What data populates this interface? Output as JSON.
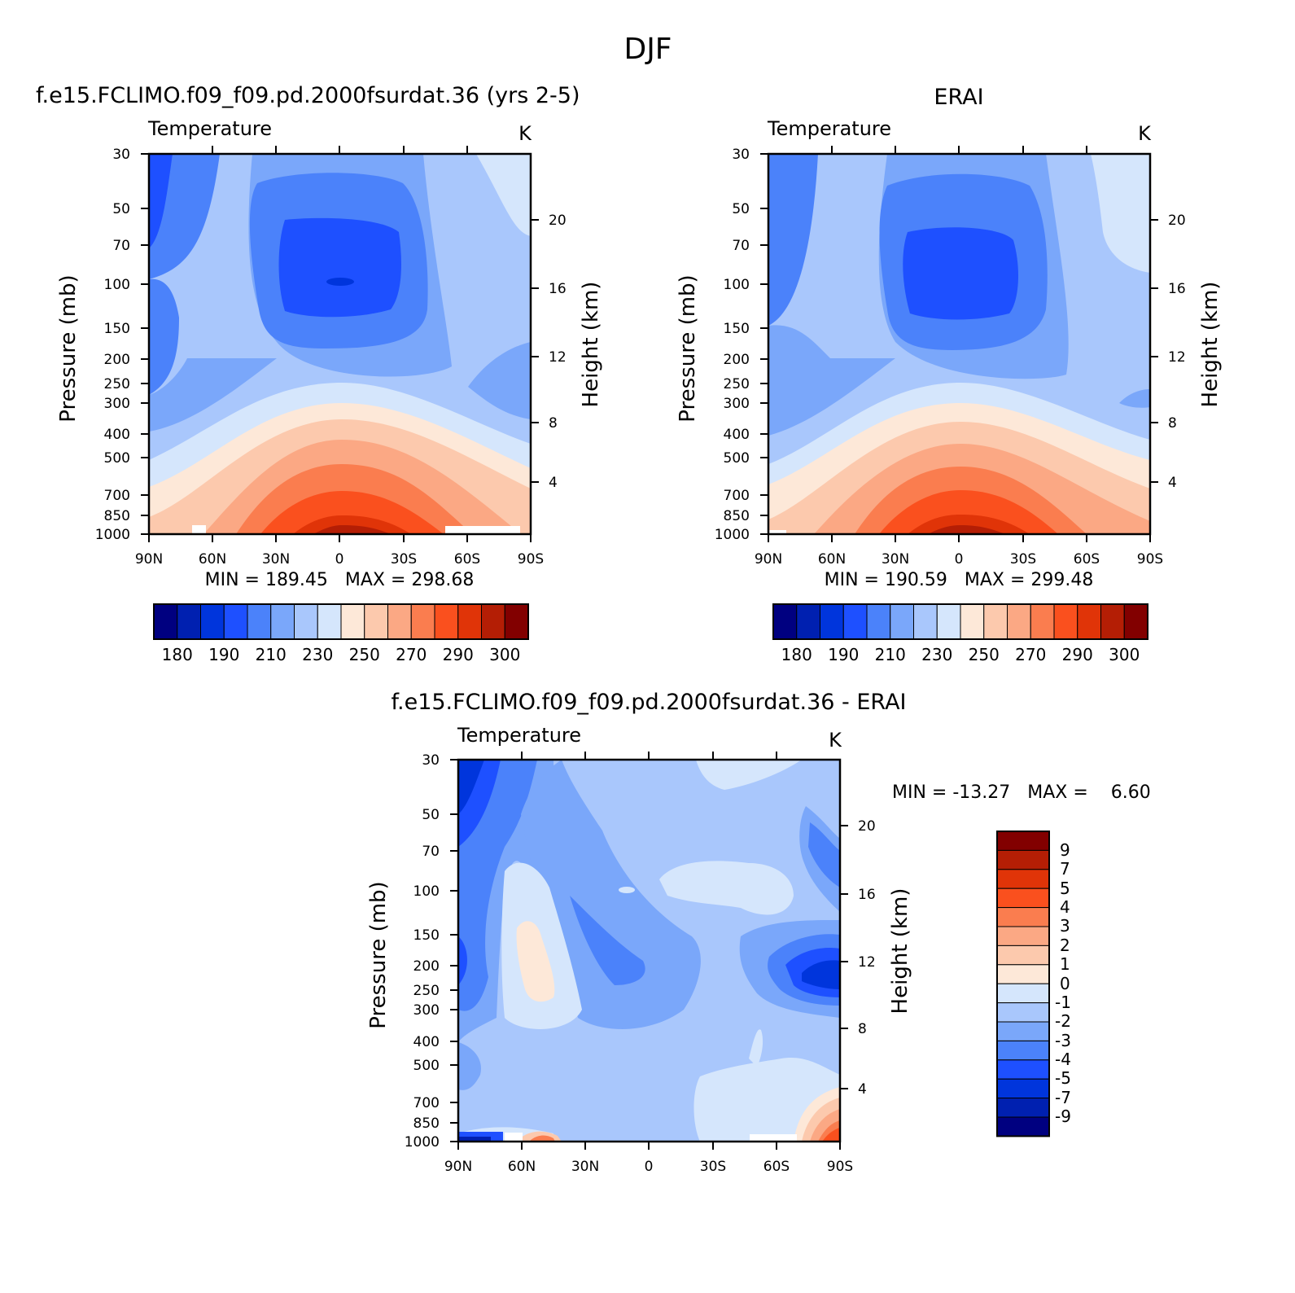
{
  "figure": {
    "title": "DJF"
  },
  "chart_data": [
    {
      "id": "model",
      "type": "heatmap",
      "title": "f.e15.FCLIMO.f09_f09.pd.2000fsurdat.36 (yrs 2-5)",
      "subtitle_left": "Temperature",
      "subtitle_right": "K",
      "ylabel": "Pressure (mb)",
      "y2label": "Height (km)",
      "xlim": [
        90,
        -90
      ],
      "ylim": [
        1000,
        30
      ],
      "yscale": "log",
      "x_ticks": [
        {
          "value": 90,
          "label": "90N"
        },
        {
          "value": 60,
          "label": "60N"
        },
        {
          "value": 30,
          "label": "30N"
        },
        {
          "value": 0,
          "label": "0"
        },
        {
          "value": -30,
          "label": "30S"
        },
        {
          "value": -60,
          "label": "60S"
        },
        {
          "value": -90,
          "label": "90S"
        }
      ],
      "y_ticks": [
        30,
        50,
        70,
        100,
        150,
        200,
        250,
        300,
        400,
        500,
        700,
        850,
        1000
      ],
      "y2_ticks": [
        20,
        16,
        12,
        8,
        4
      ],
      "stats": "MIN = 189.45   MAX = 298.68",
      "min": 189.45,
      "max": 298.68,
      "colorbar": {
        "orientation": "horizontal",
        "labels": [
          "180",
          "190",
          "210",
          "230",
          "250",
          "270",
          "290",
          "300"
        ],
        "colors": [
          "#000080",
          "#0020b0",
          "#0035dc",
          "#1e50ff",
          "#4b82fa",
          "#7aa7fa",
          "#a9c7fc",
          "#d5e6fc",
          "#fde8d8",
          "#fcc9ad",
          "#fba884",
          "#fa7d4f",
          "#fa501e",
          "#e03408",
          "#b41e05",
          "#820000"
        ]
      }
    },
    {
      "id": "obs",
      "type": "heatmap",
      "title": "ERAI",
      "subtitle_left": "Temperature",
      "subtitle_right": "K",
      "ylabel": "Pressure (mb)",
      "y2label": "Height (km)",
      "xlim": [
        90,
        -90
      ],
      "ylim": [
        1000,
        30
      ],
      "yscale": "log",
      "x_ticks": [
        {
          "value": 90,
          "label": "90N"
        },
        {
          "value": 60,
          "label": "60N"
        },
        {
          "value": 30,
          "label": "30N"
        },
        {
          "value": 0,
          "label": "0"
        },
        {
          "value": -30,
          "label": "30S"
        },
        {
          "value": -60,
          "label": "60S"
        },
        {
          "value": -90,
          "label": "90S"
        }
      ],
      "y_ticks": [
        30,
        50,
        70,
        100,
        150,
        200,
        250,
        300,
        400,
        500,
        700,
        850,
        1000
      ],
      "y2_ticks": [
        20,
        16,
        12,
        8,
        4
      ],
      "stats": "MIN = 190.59   MAX = 299.48",
      "min": 190.59,
      "max": 299.48,
      "colorbar": {
        "orientation": "horizontal",
        "labels": [
          "180",
          "190",
          "210",
          "230",
          "250",
          "270",
          "290",
          "300"
        ],
        "colors": [
          "#000080",
          "#0020b0",
          "#0035dc",
          "#1e50ff",
          "#4b82fa",
          "#7aa7fa",
          "#a9c7fc",
          "#d5e6fc",
          "#fde8d8",
          "#fcc9ad",
          "#fba884",
          "#fa7d4f",
          "#fa501e",
          "#e03408",
          "#b41e05",
          "#820000"
        ]
      }
    },
    {
      "id": "diff",
      "type": "heatmap",
      "title": "f.e15.FCLIMO.f09_f09.pd.2000fsurdat.36 - ERAI",
      "subtitle_left": "Temperature",
      "subtitle_right": "K",
      "ylabel": "Pressure (mb)",
      "y2label": "Height (km)",
      "xlim": [
        90,
        -90
      ],
      "ylim": [
        1000,
        30
      ],
      "yscale": "log",
      "x_ticks": [
        {
          "value": 90,
          "label": "90N"
        },
        {
          "value": 60,
          "label": "60N"
        },
        {
          "value": 30,
          "label": "30N"
        },
        {
          "value": 0,
          "label": "0"
        },
        {
          "value": -30,
          "label": "30S"
        },
        {
          "value": -60,
          "label": "60S"
        },
        {
          "value": -90,
          "label": "90S"
        }
      ],
      "y_ticks": [
        30,
        50,
        70,
        100,
        150,
        200,
        250,
        300,
        400,
        500,
        700,
        850,
        1000
      ],
      "y2_ticks": [
        20,
        16,
        12,
        8,
        4
      ],
      "stats": "MIN = -13.27   MAX =    6.60",
      "min": -13.27,
      "max": 6.6,
      "colorbar": {
        "orientation": "vertical",
        "labels": [
          "9",
          "7",
          "5",
          "4",
          "3",
          "2",
          "1",
          "0",
          "-1",
          "-2",
          "-3",
          "-4",
          "-5",
          "-7",
          "-9"
        ],
        "colors": [
          "#820000",
          "#b41e05",
          "#e03408",
          "#fa501e",
          "#fa7d4f",
          "#fba884",
          "#fcc9ad",
          "#fde8d8",
          "#d5e6fc",
          "#a9c7fc",
          "#7aa7fa",
          "#4b82fa",
          "#1e50ff",
          "#0035dc",
          "#0020b0",
          "#000080"
        ]
      }
    }
  ]
}
